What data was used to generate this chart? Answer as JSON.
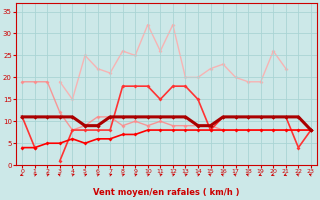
{
  "background_color": "#cce8e8",
  "grid_color": "#aad4d4",
  "xlabel": "Vent moyen/en rafales ( km/h )",
  "x": [
    0,
    1,
    2,
    3,
    4,
    5,
    6,
    7,
    8,
    9,
    10,
    11,
    12,
    13,
    14,
    15,
    16,
    17,
    18,
    19,
    20,
    21,
    22,
    23
  ],
  "ylim": [
    0,
    37
  ],
  "yticks": [
    0,
    5,
    10,
    15,
    20,
    25,
    30,
    35
  ],
  "line1_color": "#ff9999",
  "line1_lw": 1.0,
  "line1_y": [
    11,
    null,
    null,
    null,
    null,
    null,
    null,
    null,
    null,
    null,
    null,
    null,
    null,
    null,
    null,
    null,
    null,
    null,
    null,
    null,
    null,
    null,
    null,
    null
  ],
  "line2_color": "#ffaaaa",
  "line2_lw": 1.0,
  "line2_y": [
    null,
    null,
    null,
    19,
    15,
    25,
    22,
    21,
    26,
    25,
    32,
    26,
    32,
    20,
    20,
    22,
    23,
    20,
    19,
    19,
    26,
    22,
    null,
    null
  ],
  "line3_color": "#ff8888",
  "line3_lw": 1.0,
  "line3_y": [
    19,
    19,
    19,
    12,
    8,
    9,
    11,
    11,
    9,
    10,
    9,
    10,
    9,
    9,
    9,
    9,
    8,
    8,
    8,
    8,
    8,
    8,
    8,
    8
  ],
  "line4_color": "#ff3333",
  "line4_lw": 1.2,
  "line4_y": [
    11,
    4,
    null,
    1,
    8,
    8,
    8,
    8,
    18,
    18,
    18,
    15,
    18,
    18,
    15,
    8,
    11,
    11,
    11,
    11,
    11,
    11,
    4,
    8
  ],
  "line5_color": "#ff0000",
  "line5_lw": 1.2,
  "line5_y": [
    4,
    4,
    5,
    5,
    6,
    5,
    6,
    6,
    7,
    7,
    8,
    8,
    8,
    8,
    8,
    8,
    8,
    8,
    8,
    8,
    8,
    8,
    8,
    8
  ],
  "line6_color": "#aa0000",
  "line6_lw": 2.2,
  "line6_y": [
    11,
    11,
    11,
    11,
    11,
    9,
    9,
    11,
    11,
    11,
    11,
    11,
    11,
    11,
    9,
    9,
    11,
    11,
    11,
    11,
    11,
    11,
    11,
    8
  ],
  "arrow_angles": [
    225,
    45,
    45,
    315,
    45,
    45,
    45,
    45,
    45,
    45,
    45,
    45,
    45,
    45,
    45,
    315,
    315,
    315,
    315,
    225,
    225,
    225,
    315,
    315
  ]
}
